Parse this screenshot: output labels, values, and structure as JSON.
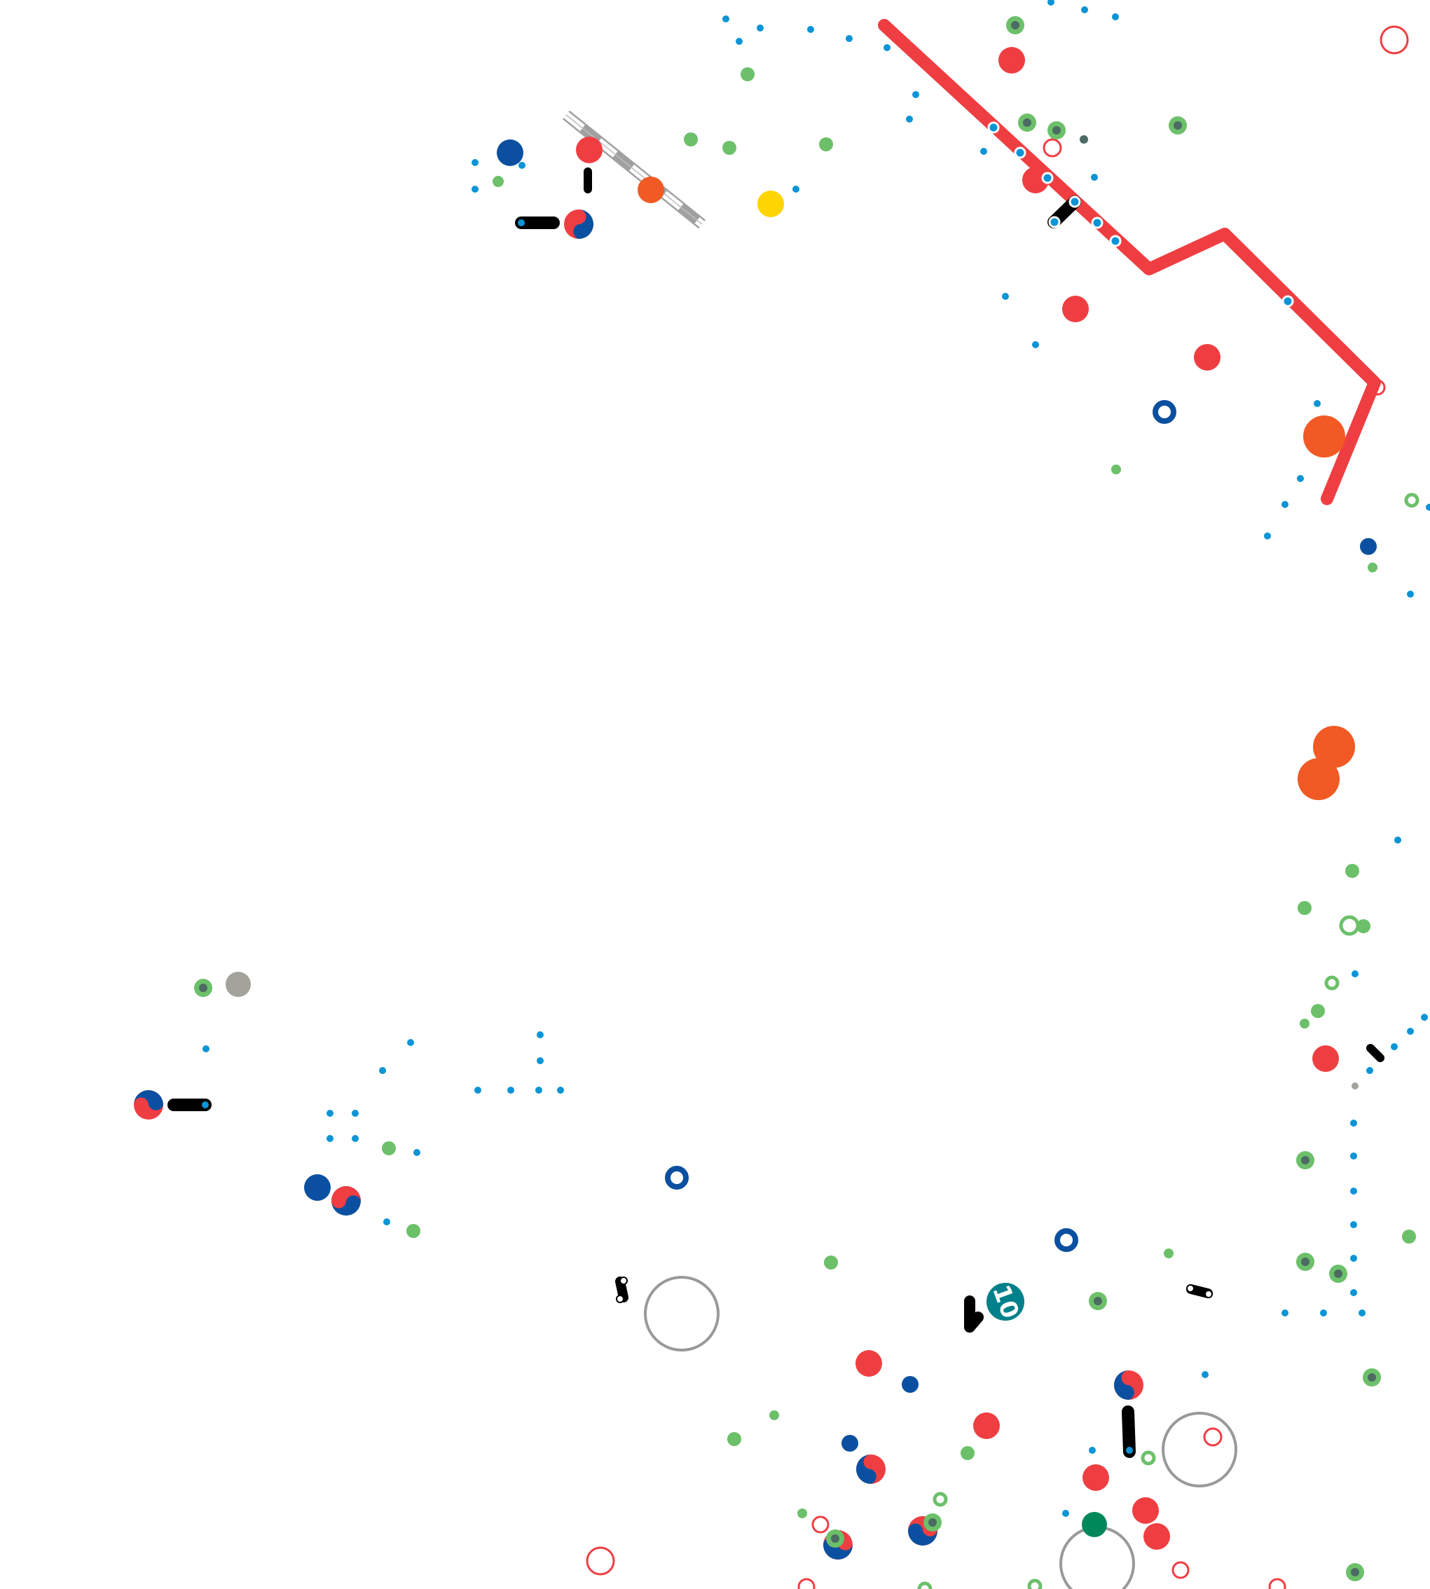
{
  "map": {
    "background": "#ffffff",
    "colors": {
      "red_line": "#ef3e42",
      "gray_line": "#a0a0a0",
      "red": "#ef3e42",
      "orange": "#f15a24",
      "blue": "#0b50a0",
      "cyan": "#0b94d6",
      "green": "#6cc06a",
      "green_dark_center": "#4d6b63",
      "yellow": "#ffd400",
      "teal": "#00808a",
      "dark_green": "#00875a",
      "gray": "#a3a29b",
      "connector": "#000000",
      "outline_gray": "#999999"
    },
    "route_badge": {
      "label": "10",
      "color": "#00808a",
      "icon": "route-badge-icon"
    }
  }
}
